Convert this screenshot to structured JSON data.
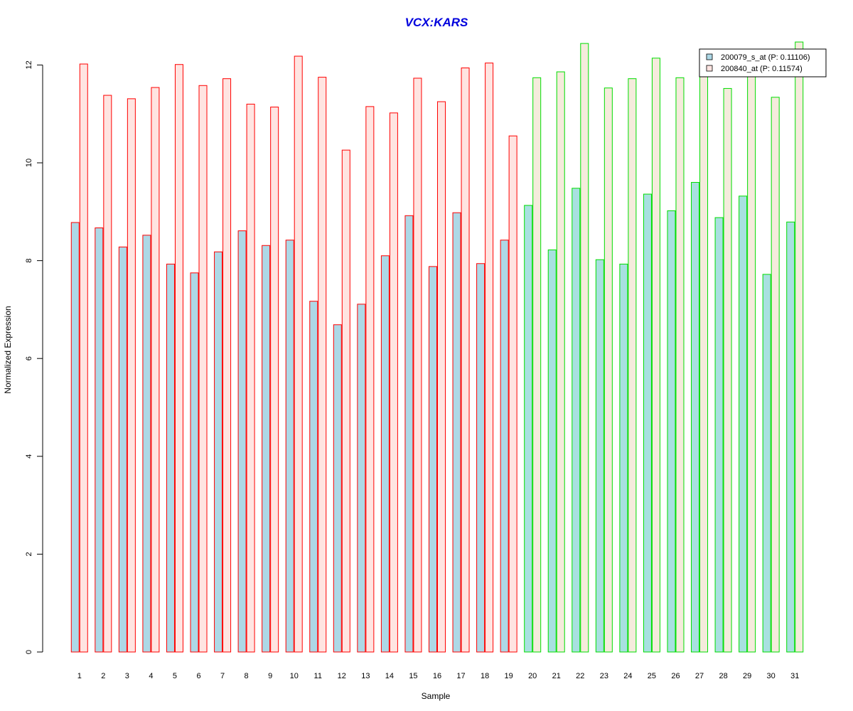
{
  "chart_data": {
    "type": "bar",
    "title": "VCX:KARS",
    "xlabel": "Sample",
    "ylabel": "Normalized Expression",
    "ylim": [
      0,
      12.5
    ],
    "yticks": [
      0,
      2,
      4,
      6,
      8,
      10,
      12
    ],
    "categories": [
      "1",
      "2",
      "3",
      "4",
      "5",
      "6",
      "7",
      "8",
      "9",
      "10",
      "11",
      "12",
      "13",
      "14",
      "15",
      "16",
      "17",
      "18",
      "19",
      "20",
      "21",
      "22",
      "23",
      "24",
      "25",
      "26",
      "27",
      "28",
      "29",
      "30",
      "31"
    ],
    "groups": [
      {
        "range": [
          1,
          19
        ],
        "border_color": "#ff0000",
        "series_fills": [
          "#add8e6",
          "#ffe4e1"
        ]
      },
      {
        "range": [
          20,
          31
        ],
        "border_color": "#00dd00",
        "series_fills": [
          "#a8e0e0",
          "#f5ebdc"
        ]
      }
    ],
    "series": [
      {
        "name": "200079_s_at (P: 0.11106)",
        "color": "#add8e6",
        "values": [
          8.78,
          8.67,
          8.28,
          8.52,
          7.93,
          7.75,
          8.18,
          8.61,
          8.31,
          8.42,
          7.17,
          6.69,
          7.11,
          8.1,
          8.92,
          7.88,
          8.98,
          7.94,
          8.42,
          9.13,
          8.22,
          9.48,
          8.02,
          7.93,
          9.36,
          9.02,
          9.6,
          8.88,
          9.32,
          7.72,
          8.79
        ]
      },
      {
        "name": "200840_at (P: 0.11574)",
        "color": "#ffe4e1",
        "values": [
          12.02,
          11.38,
          11.31,
          11.54,
          12.01,
          11.58,
          11.72,
          11.2,
          11.14,
          12.18,
          11.75,
          10.26,
          11.15,
          11.02,
          11.73,
          11.25,
          11.94,
          12.04,
          10.55,
          11.74,
          11.86,
          12.44,
          11.53,
          11.72,
          12.14,
          11.74,
          11.9,
          11.52,
          11.8,
          11.34,
          12.47
        ]
      }
    ],
    "legend_position": "top-right",
    "grid": false
  }
}
